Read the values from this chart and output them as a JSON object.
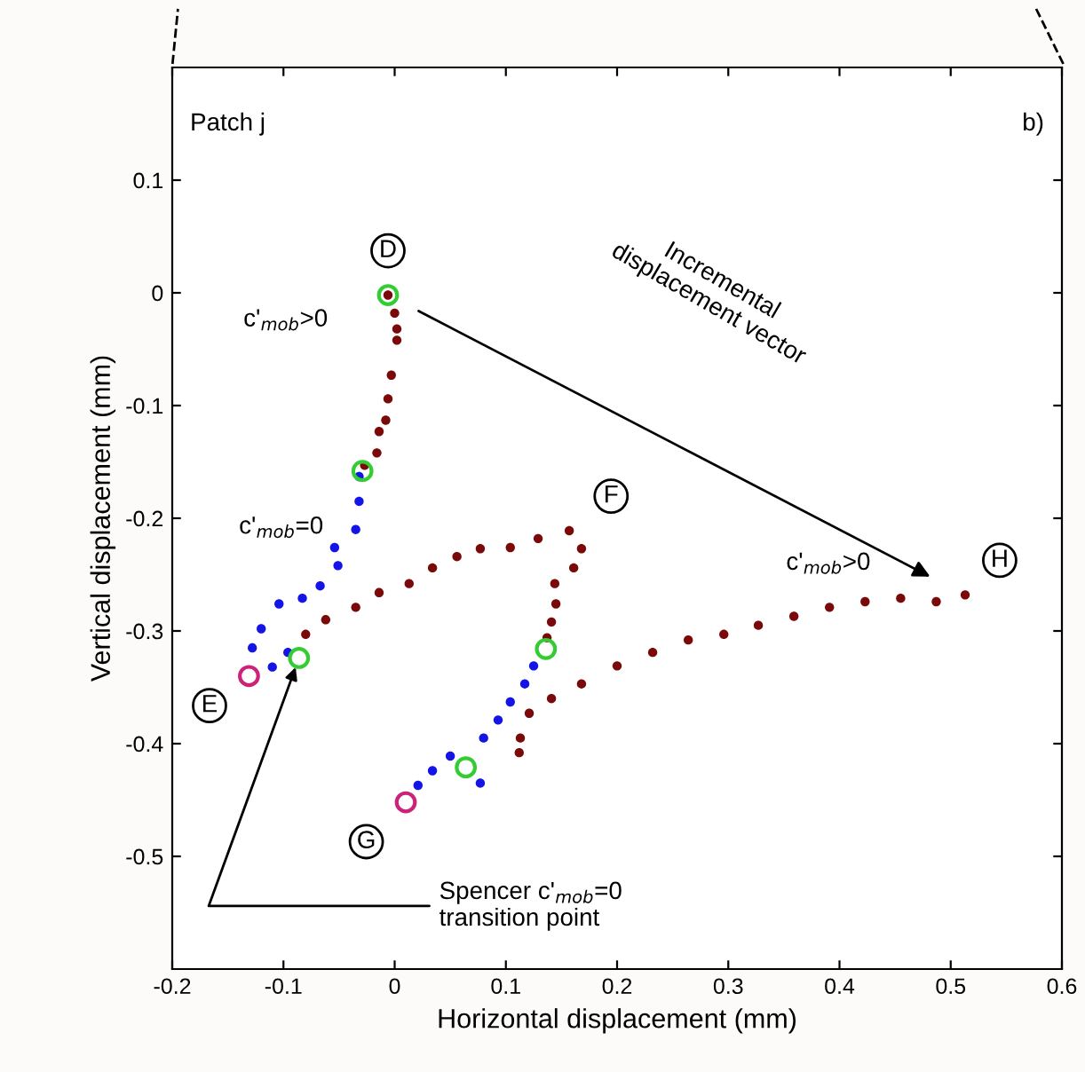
{
  "chart_data": {
    "type": "scatter",
    "xlabel": "Horizontal displacement (mm)",
    "ylabel": "Vertical displacement (mm)",
    "xlim": [
      -0.2,
      0.6
    ],
    "ylim": [
      -0.6,
      0.2
    ],
    "xticks": [
      -0.2,
      -0.1,
      0,
      0.1,
      0.2,
      0.3,
      0.4,
      0.5,
      0.6
    ],
    "yticks": [
      -0.5,
      -0.4,
      -0.3,
      -0.2,
      -0.1,
      0,
      0.1
    ],
    "grid": false,
    "legend": false,
    "marker": "circle",
    "series": [
      {
        "color": "#7a0a0a",
        "x": [
          -0.006,
          0,
          0.002,
          0.002,
          -0.003,
          -0.006,
          -0.008,
          -0.014,
          -0.016,
          -0.027,
          -0.08,
          -0.062,
          -0.035,
          -0.014,
          0.013,
          0.034,
          0.056,
          0.077,
          0.104,
          0.129,
          0.157,
          0.168,
          0.161,
          0.144,
          0.145,
          0.141,
          0.137,
          0.112,
          0.113,
          0.121,
          0.141,
          0.168,
          0.2,
          0.232,
          0.264,
          0.296,
          0.327,
          0.359,
          0.391,
          0.423,
          0.455,
          0.487,
          0.513
        ],
        "values": [
          -0.002,
          -0.018,
          -0.032,
          -0.042,
          -0.073,
          -0.094,
          -0.113,
          -0.123,
          -0.142,
          -0.153,
          -0.303,
          -0.29,
          -0.279,
          -0.266,
          -0.258,
          -0.244,
          -0.234,
          -0.227,
          -0.226,
          -0.218,
          -0.211,
          -0.227,
          -0.244,
          -0.258,
          -0.276,
          -0.292,
          -0.306,
          -0.408,
          -0.395,
          -0.373,
          -0.36,
          -0.347,
          -0.331,
          -0.319,
          -0.308,
          -0.303,
          -0.295,
          -0.287,
          -0.279,
          -0.274,
          -0.271,
          -0.274,
          -0.268
        ]
      },
      {
        "color": "#1414e6",
        "x": [
          -0.032,
          -0.032,
          -0.035,
          -0.054,
          -0.051,
          -0.067,
          -0.083,
          -0.104,
          -0.12,
          -0.128,
          -0.11,
          -0.096,
          0.125,
          0.117,
          0.104,
          0.093,
          0.08,
          0.05,
          0.034,
          0.021,
          0.077
        ],
        "values": [
          -0.163,
          -0.185,
          -0.21,
          -0.226,
          -0.242,
          -0.26,
          -0.271,
          -0.276,
          -0.298,
          -0.315,
          -0.332,
          -0.319,
          -0.331,
          -0.347,
          -0.363,
          -0.379,
          -0.395,
          -0.411,
          -0.424,
          -0.437,
          -0.435
        ]
      },
      {
        "color": "#33cc33",
        "x": [
          -0.006,
          -0.029,
          -0.086,
          0.136,
          0.064
        ],
        "values": [
          -0.002,
          -0.158,
          -0.324,
          -0.316,
          -0.421
        ]
      },
      {
        "color": "#cc2277",
        "x": [
          -0.131,
          0.01
        ],
        "values": [
          -0.34,
          -0.452
        ]
      }
    ],
    "annotations": [
      {
        "text": "D",
        "x": -0.006,
        "y": -0.002
      },
      {
        "text": "E",
        "x": -0.131,
        "y": -0.34
      },
      {
        "text": "F",
        "x": 0.168,
        "y": -0.211
      },
      {
        "text": "G",
        "x": 0.01,
        "y": -0.452
      },
      {
        "text": "H",
        "x": 0.513,
        "y": -0.268
      },
      "Patch j",
      "b)",
      "c'$_{mob}$>0",
      "c'$_{mob}$=0",
      "c'$_{mob}$>0",
      "Incremental\ndisplacement vector",
      {
        "text": "Spencer c'$_{mob}$=0\ntransition point",
        "x": -0.086,
        "y": -0.324
      }
    ]
  }
}
